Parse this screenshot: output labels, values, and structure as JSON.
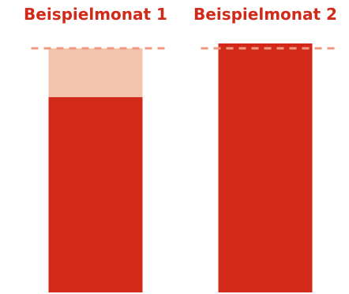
{
  "chart_data": {
    "type": "bar",
    "categories": [
      "Beispielmonat 1",
      "Beispielmonat 2"
    ],
    "series": [
      {
        "values": [
          80,
          102
        ]
      },
      {
        "values": [
          100,
          0
        ]
      }
    ],
    "reference_line": 100,
    "ylim": [
      0,
      102
    ],
    "title": "",
    "xlabel": "",
    "ylabel": "",
    "grid": false,
    "legend": "none"
  },
  "colors": {
    "primary": "#d22a1a",
    "light": "#f2c4ae",
    "dashed": "#ef9a80"
  }
}
